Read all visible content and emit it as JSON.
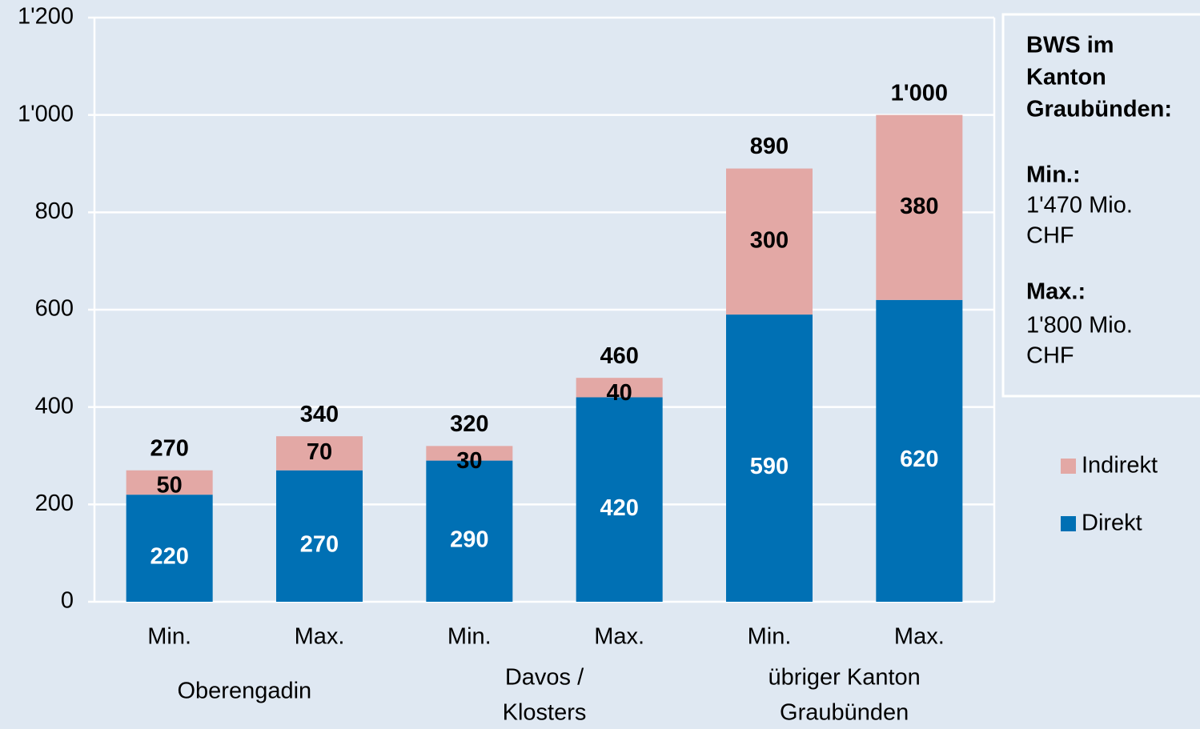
{
  "chart_data": {
    "type": "stacked_bar",
    "categories": [
      "Min.",
      "Max.",
      "Min.",
      "Max.",
      "Min.",
      "Max."
    ],
    "groups": [
      {
        "lines": [
          "Oberengadin"
        ]
      },
      {
        "lines": [
          "Davos /",
          "Klosters"
        ]
      },
      {
        "lines": [
          "übriger Kanton",
          "Graubünden"
        ]
      }
    ],
    "series": [
      {
        "name": "Direkt",
        "color": "#0070b4",
        "values": [
          220,
          270,
          290,
          420,
          590,
          620
        ]
      },
      {
        "name": "Indirekt",
        "color": "#e3a8a5",
        "values": [
          50,
          70,
          30,
          40,
          300,
          380
        ]
      }
    ],
    "total_labels": [
      "270",
      "340",
      "320",
      "460",
      "890",
      "1'000"
    ],
    "ylim": [
      0,
      1200
    ],
    "yticks": [
      0,
      200,
      400,
      600,
      800,
      {
        "value": 1000,
        "label": "1'000"
      },
      {
        "value": 1200,
        "label": "1'200"
      }
    ],
    "grid": true,
    "annotation": {
      "title": [
        "BWS im",
        "Kanton",
        "Graubünden:"
      ],
      "min_label": "Min.:",
      "min_value": [
        "1'470 Mio.",
        "CHF"
      ],
      "max_label": "Max.:",
      "max_value": [
        "1'800 Mio.",
        "CHF"
      ]
    }
  }
}
